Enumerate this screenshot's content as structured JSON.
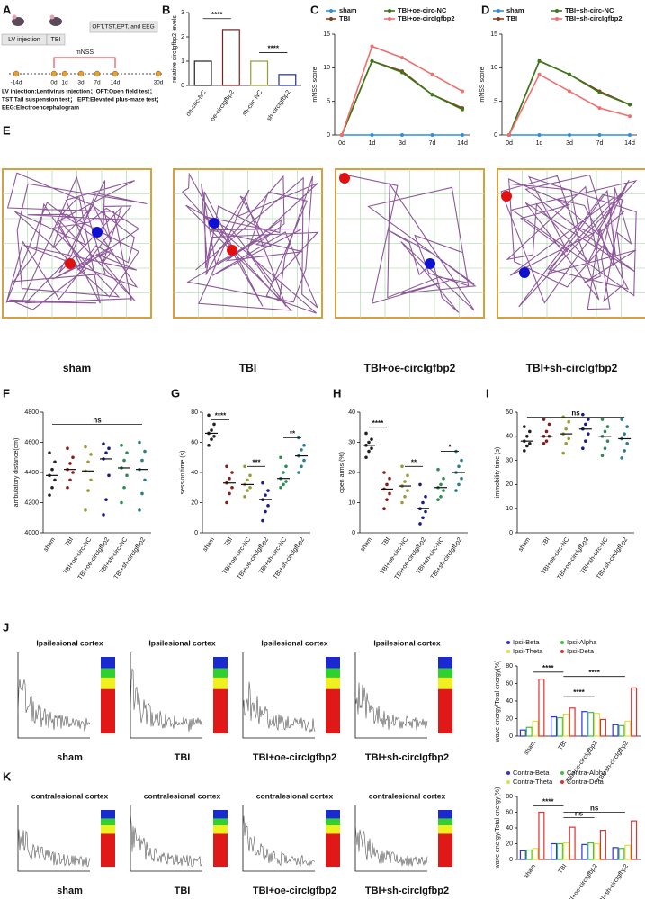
{
  "panel_letters": [
    "A",
    "B",
    "C",
    "D",
    "E",
    "F",
    "G",
    "H",
    "I",
    "J",
    "K"
  ],
  "panel_a": {
    "steps": [
      "LV injection",
      "TBI",
      "OFT,TST,EPT, and EEG",
      "mNSS"
    ],
    "days": [
      "-14d",
      "0d",
      "1d",
      "3d",
      "7d",
      "14d",
      "30d"
    ],
    "notes": [
      "LV injection:Lentivirus injection；OFT:Open field test；",
      "TST:Tail suspension test；  EPT:Elevated plus-maze test；",
      "EEG:Electroencephalogram"
    ]
  },
  "panel_e": {
    "labels": [
      "sham",
      "TBI",
      "TBI+oe-circIgfbp2",
      "TBI+sh-circIgfbp2"
    ]
  },
  "panel_j_spectra": {
    "titles": [
      "Ipsilesional cortex",
      "Ipsilesional cortex",
      "Ipsilesional cortex",
      "Ipsilesional cortex"
    ],
    "labels": [
      "sham",
      "TBI",
      "TBI+oe-circIgfbp2",
      "TBI+sh-circIgfbp2"
    ]
  },
  "panel_k_spectra": {
    "titles": [
      "contralesional cortex",
      "contralesional cortex",
      "contralesional cortex",
      "contralesional cortex"
    ],
    "labels": [
      "sham",
      "TBI",
      "TBI+oe-circIgfbp2",
      "TBI+sh-circIgfbp2"
    ]
  },
  "chart_data": [
    {
      "type": "bar",
      "ylabel": "relative circIgfbp2 levels",
      "categories": [
        "oe-circ-NC",
        "oe-circIgfbp2",
        "sh-circ-NC",
        "sh-circIgfbp2"
      ],
      "values": [
        1.0,
        2.3,
        1.0,
        0.45
      ],
      "colors": [
        "#222222",
        "#7a1f1f",
        "#9a9a3a",
        "#1f2f8a"
      ],
      "ylim": [
        0,
        3
      ],
      "yticks": [
        0,
        1,
        2,
        3
      ],
      "annotations": [
        "****",
        "****"
      ]
    },
    {
      "type": "line",
      "ylabel": "mNSS score",
      "categories": [
        "0d",
        "1d",
        "3d",
        "7d",
        "14d"
      ],
      "ylim": [
        0,
        15
      ],
      "yticks": [
        0,
        5,
        10,
        15
      ],
      "series": [
        {
          "name": "sham",
          "color": "#2f8fe0",
          "values": [
            0,
            0,
            0,
            0,
            0
          ]
        },
        {
          "name": "TBI",
          "color": "#8b3a1a",
          "values": [
            0,
            11,
            9.5,
            6,
            4
          ]
        },
        {
          "name": "TBI+oe-circ-NC",
          "color": "#3a7a1a",
          "values": [
            0,
            11,
            9.3,
            6,
            3.8
          ]
        },
        {
          "name": "TBI+oe-circIgfbp2",
          "color": "#f07070",
          "values": [
            0,
            13.2,
            11.5,
            9,
            6.5
          ]
        }
      ]
    },
    {
      "type": "line",
      "ylabel": "mNSS score",
      "categories": [
        "0d",
        "1d",
        "3d",
        "7d",
        "14d"
      ],
      "ylim": [
        0,
        15
      ],
      "yticks": [
        0,
        5,
        10,
        15
      ],
      "series": [
        {
          "name": "sham",
          "color": "#2f8fe0",
          "values": [
            0,
            0,
            0,
            0,
            0
          ]
        },
        {
          "name": "TBI",
          "color": "#8b3a1a",
          "values": [
            0,
            11,
            9,
            6.5,
            4.5
          ]
        },
        {
          "name": "TBI+sh-circ-NC",
          "color": "#3a7a1a",
          "values": [
            0,
            11,
            9,
            6.3,
            4.5
          ]
        },
        {
          "name": "TBI+sh-circIgfbp2",
          "color": "#f07070",
          "values": [
            0,
            9,
            6.5,
            4,
            2.8
          ]
        }
      ]
    },
    {
      "type": "dot",
      "ylabel": "ambulatory distance(cm)",
      "categories": [
        "sham",
        "TBI",
        "TBI+oe-circ-NC",
        "TBI+oe-circIgfbp2",
        "TBI+sh-circ-NC",
        "TBI+sh-circIgfbp2"
      ],
      "colors": [
        "#222222",
        "#8b1a1a",
        "#9a9a3a",
        "#1a1a8a",
        "#2e8b57",
        "#2a7f8f"
      ],
      "values": [
        4380,
        4420,
        4410,
        4490,
        4430,
        4420
      ],
      "points": [
        [
          4250,
          4300,
          4350,
          4380,
          4420,
          4470,
          4530
        ],
        [
          4300,
          4350,
          4400,
          4420,
          4460,
          4500,
          4560
        ],
        [
          4150,
          4280,
          4350,
          4410,
          4470,
          4520,
          4570
        ],
        [
          4120,
          4220,
          4380,
          4490,
          4530,
          4560,
          4590
        ],
        [
          4200,
          4300,
          4380,
          4430,
          4480,
          4530,
          4580
        ],
        [
          4150,
          4260,
          4350,
          4420,
          4480,
          4540,
          4600
        ]
      ],
      "ylim": [
        4000,
        4800
      ],
      "yticks": [
        4000,
        4200,
        4400,
        4600,
        4800
      ],
      "annotations": [
        "ns"
      ]
    },
    {
      "type": "dot",
      "ylabel": "session time (s)",
      "categories": [
        "sham",
        "TBI",
        "TBI+oe-circ-NC",
        "TBI+oe-circIgfbp2",
        "TBI+sh-circ-NC",
        "TBI+sh-circIgfbp2"
      ],
      "colors": [
        "#222222",
        "#8b1a1a",
        "#9a9a3a",
        "#1a1a8a",
        "#2e8b57",
        "#2a7f8f"
      ],
      "values": [
        66,
        33,
        32,
        22,
        36,
        51
      ],
      "points": [
        [
          58,
          62,
          64,
          66,
          68,
          72,
          78
        ],
        [
          20,
          26,
          30,
          33,
          36,
          40,
          44
        ],
        [
          24,
          28,
          30,
          32,
          35,
          38,
          44
        ],
        [
          8,
          14,
          18,
          22,
          25,
          28,
          33
        ],
        [
          30,
          32,
          34,
          36,
          40,
          44,
          50
        ],
        [
          40,
          44,
          48,
          51,
          55,
          58,
          63
        ]
      ],
      "ylim": [
        0,
        80
      ],
      "yticks": [
        0,
        20,
        40,
        60,
        80
      ],
      "annotations": [
        "****",
        "***",
        "**"
      ]
    },
    {
      "type": "dot",
      "ylabel": "open arms (%)",
      "categories": [
        "sham",
        "TBI",
        "TBI+oe-circ-NC",
        "TBI+oe-circIgfbp2",
        "TBI+sh-circ-NC",
        "TBI+sh-circIgfbp2"
      ],
      "colors": [
        "#222222",
        "#8b1a1a",
        "#9a9a3a",
        "#1a1a8a",
        "#2e8b57",
        "#2a7f8f"
      ],
      "values": [
        29,
        14.5,
        15.5,
        8,
        15,
        20
      ],
      "points": [
        [
          25,
          27,
          28,
          29,
          30,
          31,
          33
        ],
        [
          8,
          11,
          13,
          14.5,
          16,
          18,
          20
        ],
        [
          10,
          12,
          14,
          15.5,
          17,
          19,
          22
        ],
        [
          3,
          5,
          7,
          8,
          10,
          12,
          16
        ],
        [
          11,
          12,
          14,
          15,
          16,
          18,
          21
        ],
        [
          14,
          16,
          18,
          20,
          22,
          24,
          27
        ]
      ],
      "ylim": [
        0,
        40
      ],
      "yticks": [
        0,
        10,
        20,
        30,
        40
      ],
      "annotations": [
        "****",
        "**",
        "*"
      ]
    },
    {
      "type": "dot",
      "ylabel": "immobility time (s)",
      "categories": [
        "sham",
        "TBI",
        "TBI+oe-circ-NC",
        "TBI+oe-circIgfbp2",
        "TBI+sh-circ-NC",
        "TBI+sh-circIgfbp2"
      ],
      "colors": [
        "#222222",
        "#8b1a1a",
        "#9a9a3a",
        "#1a1a8a",
        "#2e8b57",
        "#2a7f8f"
      ],
      "values": [
        38,
        40,
        41,
        43,
        40,
        39
      ],
      "points": [
        [
          34,
          36,
          37,
          38,
          40,
          42,
          44
        ],
        [
          37,
          38,
          40,
          40,
          42,
          45,
          47
        ],
        [
          33,
          37,
          39,
          41,
          43,
          46,
          48
        ],
        [
          35,
          38,
          41,
          43,
          45,
          47,
          49
        ],
        [
          32,
          35,
          38,
          40,
          42,
          44,
          47
        ],
        [
          31,
          34,
          37,
          39,
          41,
          44,
          47
        ]
      ],
      "ylim": [
        0,
        50
      ],
      "yticks": [
        0,
        10,
        20,
        30,
        40,
        50
      ],
      "annotations": [
        "ns"
      ]
    },
    {
      "type": "groupbar",
      "ylabel": "wave energy/Total energy(%)",
      "categories": [
        "sham",
        "TBI",
        "TBI+oe-circIgfbp2",
        "TBI+sh-circIgfbp2"
      ],
      "ylim": [
        0,
        80
      ],
      "yticks": [
        0,
        20,
        40,
        60,
        80
      ],
      "series": [
        {
          "name": "Ipsi-Beta",
          "color": "#3030e0",
          "values": [
            7,
            22,
            28,
            13
          ]
        },
        {
          "name": "Ipsi-Alpha",
          "color": "#40c040",
          "values": [
            10,
            21,
            27,
            12
          ]
        },
        {
          "name": "Ipsi-Theta",
          "color": "#e0e040",
          "values": [
            17,
            25,
            26,
            17
          ]
        },
        {
          "name": "Ipsi-Deta",
          "color": "#e03030",
          "values": [
            65,
            32,
            19,
            55
          ]
        }
      ],
      "annotations": [
        "****",
        "****",
        "****"
      ]
    },
    {
      "type": "groupbar",
      "ylabel": "wave energy/Total energy(%)",
      "categories": [
        "sham",
        "TBI",
        "TBI+oe-circIgfbp2",
        "TBI+sh-circIgfbp2"
      ],
      "ylim": [
        0,
        80
      ],
      "yticks": [
        0,
        20,
        40,
        60,
        80
      ],
      "series": [
        {
          "name": "Contra-Beta",
          "color": "#3030e0",
          "values": [
            11,
            20,
            19,
            15
          ]
        },
        {
          "name": "Contra-Alpha",
          "color": "#40c040",
          "values": [
            12,
            20,
            21,
            14
          ]
        },
        {
          "name": "Contra-Theta",
          "color": "#e0e040",
          "values": [
            14,
            21,
            20,
            18
          ]
        },
        {
          "name": "Contra-Deta",
          "color": "#e03030",
          "values": [
            60,
            41,
            37,
            49
          ]
        }
      ],
      "annotations": [
        "****",
        "ns",
        "ns"
      ]
    }
  ]
}
